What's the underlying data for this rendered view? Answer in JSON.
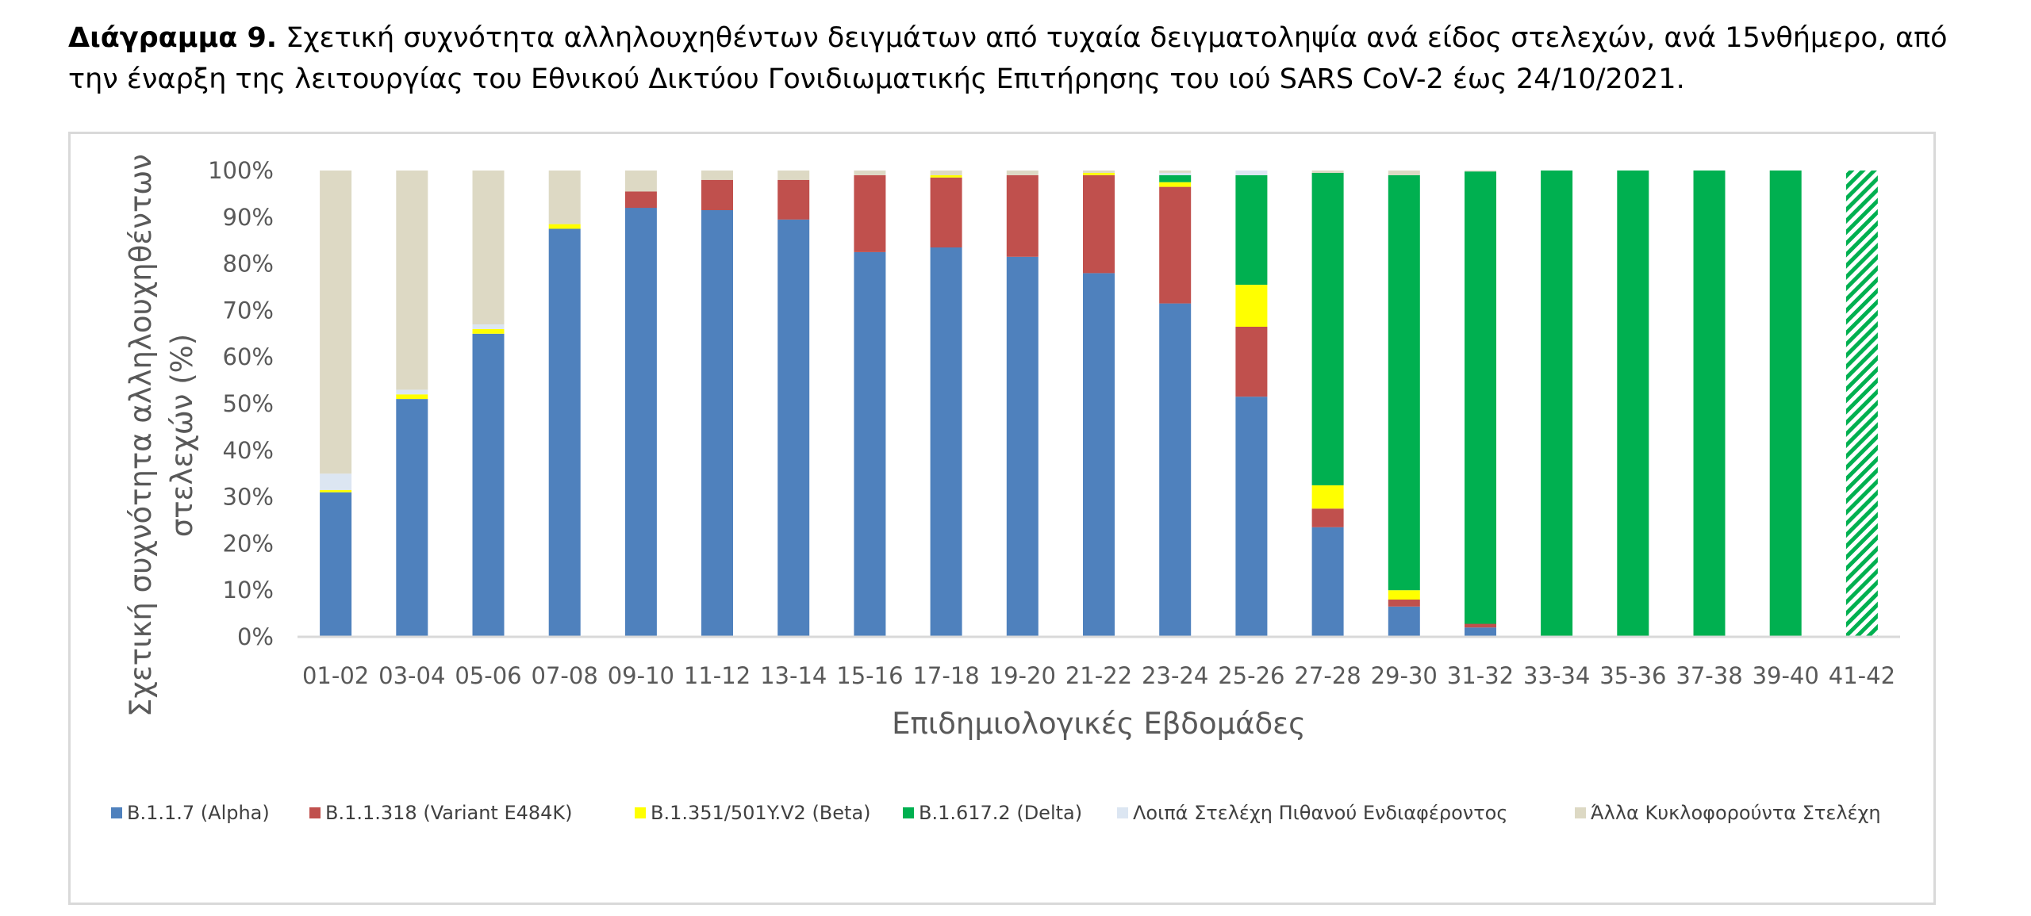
{
  "caption": {
    "bold": "Διάγραμμα 9.",
    "text": " Σχετική συχνότητα αλληλουχηθέντων δειγμάτων από τυχαία δειγματοληψία ανά είδος στελεχών, ανά 15νθήμερο, από την έναρξη της λειτουργίας του Εθνικού Δικτύου Γονιδιωματικής Επιτήρησης του ιού SARS CoV-2 έως 24/10/2021."
  },
  "chart_data": {
    "type": "bar",
    "stacked": true,
    "xlabel": "Επιδημιολογικές Εβδομάδες",
    "ylabel_lines": [
      "Σχετική συχνότητα αλληλουχηθέντων",
      "στελεχών (%)"
    ],
    "ylim": [
      0,
      100
    ],
    "yticks": [
      "0%",
      "10%",
      "20%",
      "30%",
      "40%",
      "50%",
      "60%",
      "70%",
      "80%",
      "90%",
      "100%"
    ],
    "categories": [
      "01-02",
      "03-04",
      "05-06",
      "07-08",
      "09-10",
      "11-12",
      "13-14",
      "15-16",
      "17-18",
      "19-20",
      "21-22",
      "23-24",
      "25-26",
      "27-28",
      "29-30",
      "31-32",
      "33-34",
      "35-36",
      "37-38",
      "39-40",
      "41-42"
    ],
    "hatched_category": "41-42",
    "legend_position": "bottom",
    "series": [
      {
        "name": "B.1.1.7 (Alpha)",
        "color": "#4f81bd",
        "values": [
          31,
          51,
          65,
          87.5,
          92,
          91.5,
          89.5,
          82.5,
          83.5,
          81.5,
          78,
          71.5,
          51.5,
          23.5,
          6.5,
          2,
          0,
          0,
          0,
          0,
          0
        ]
      },
      {
        "name": "B.1.1.318 (Variant E484K)",
        "color": "#c0504d",
        "values": [
          0,
          0,
          0,
          0,
          3.5,
          6.5,
          8.5,
          16.5,
          15,
          17.5,
          21,
          25,
          15,
          4,
          1.5,
          0.8,
          0,
          0,
          0,
          0,
          0
        ]
      },
      {
        "name": "B.1.351/501Y.V2 (Beta)",
        "color": "#ffff00",
        "values": [
          0.5,
          1,
          1,
          1,
          0,
          0,
          0,
          0,
          0.5,
          0,
          0.5,
          1,
          9,
          5,
          2,
          0,
          0,
          0,
          0,
          0,
          0
        ]
      },
      {
        "name": "B.1.617.2 (Delta)",
        "color": "#00b050",
        "values": [
          0,
          0,
          0,
          0,
          0,
          0,
          0,
          0,
          0,
          0,
          0,
          1.5,
          23.5,
          67,
          89,
          97,
          100,
          100,
          100,
          100,
          100
        ]
      },
      {
        "name": "Λοιπά Στελέχη Πιθανού Ενδιαφέροντος",
        "color": "#dce6f2",
        "values": [
          3.5,
          1,
          1,
          0,
          0,
          0,
          0,
          0,
          0,
          0,
          0,
          0.5,
          1,
          0,
          0,
          0,
          0,
          0,
          0,
          0,
          0
        ]
      },
      {
        "name": "Άλλα Κυκλοφορούντα Στελέχη",
        "color": "#ddd9c4",
        "values": [
          65,
          47,
          33,
          11.5,
          4.5,
          2,
          2,
          1,
          1,
          1,
          0.5,
          0.5,
          0,
          0.5,
          1,
          0.2,
          0,
          0,
          0,
          0,
          0
        ]
      }
    ]
  }
}
